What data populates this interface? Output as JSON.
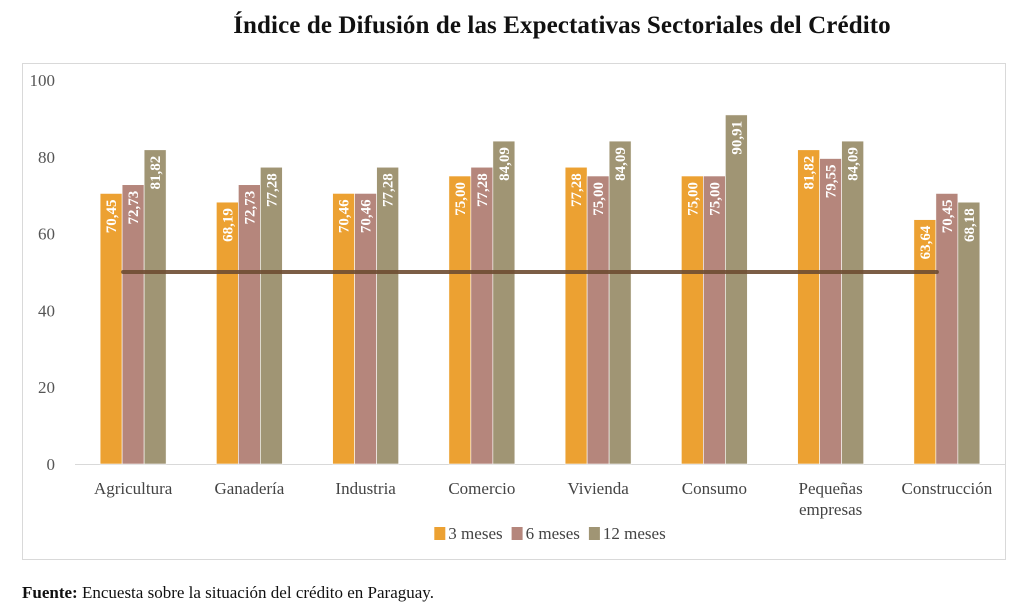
{
  "chart_data": {
    "type": "bar",
    "title": "Índice de Difusión de las Expectativas Sectoriales del Crédito",
    "xlabel": "",
    "ylabel": "",
    "ylim": [
      0,
      100
    ],
    "yticks": [
      "0",
      "20",
      "40",
      "60",
      "80",
      "100"
    ],
    "ytick_values": [
      0,
      20,
      40,
      60,
      80,
      100
    ],
    "grid": false,
    "legend_position": "bottom-center",
    "categories": [
      [
        "Agricultura"
      ],
      [
        "Ganadería"
      ],
      [
        "Industria"
      ],
      [
        "Comercio"
      ],
      [
        "Vivienda"
      ],
      [
        "Consumo"
      ],
      [
        "Pequeñas",
        "empresas"
      ],
      [
        "Construcción"
      ]
    ],
    "series": [
      {
        "name": "3 meses",
        "color": "#eca132",
        "values": [
          70.45,
          68.19,
          70.46,
          75.0,
          77.28,
          75.0,
          81.82,
          63.64
        ],
        "labels": [
          "70,45",
          "68,19",
          "70,46",
          "75,00",
          "77,28",
          "75,00",
          "81,82",
          "63,64"
        ]
      },
      {
        "name": "6 meses",
        "color": "#b5867c",
        "values": [
          72.73,
          72.73,
          70.46,
          77.28,
          75.0,
          75.0,
          79.55,
          70.45
        ],
        "labels": [
          "72,73",
          "72,73",
          "70,46",
          "77,28",
          "75,00",
          "75,00",
          "79,55",
          "70,45"
        ]
      },
      {
        "name": "12 meses",
        "color": "#a09574",
        "values": [
          81.82,
          77.28,
          77.28,
          84.09,
          84.09,
          90.91,
          84.09,
          68.18
        ],
        "labels": [
          "81,82",
          "77,28",
          "77,28",
          "84,09",
          "84,09",
          "90,91",
          "84,09",
          "68,18"
        ]
      }
    ],
    "reference_line": {
      "value": 50,
      "color": "#6e4c32"
    },
    "axis_color": "#d9d9d9",
    "label_color": "#ffffff"
  },
  "source": {
    "label": "Fuente:",
    "text": " Encuesta sobre la situación del crédito en Paraguay."
  }
}
